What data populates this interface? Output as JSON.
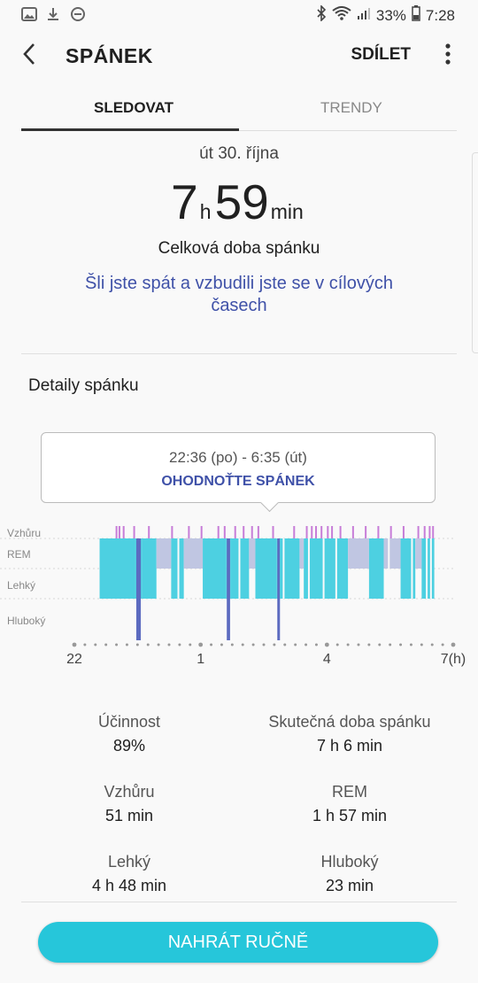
{
  "status_bar": {
    "battery": "33%",
    "time": "7:28"
  },
  "header": {
    "title": "SPÁNEK",
    "share": "SDÍLET"
  },
  "tabs": [
    {
      "label": "SLEDOVAT"
    },
    {
      "label": "TRENDY"
    }
  ],
  "summary": {
    "date": "út 30. října",
    "hours": "7",
    "hours_unit": "h",
    "minutes": "59",
    "minutes_unit": "min",
    "label": "Celková doba spánku",
    "message": "Šli jste spát a vzbudili jste se v cílových časech"
  },
  "details": {
    "title": "Detaily spánku",
    "time_range": "22:36 (po) - 6:35 (út)",
    "rate_label": "OHODNOŤTE SPÁNEK"
  },
  "chart_data": {
    "type": "area",
    "stage_labels": [
      "Vzhůru",
      "REM",
      "Lehký",
      "Hluboký"
    ],
    "x_ticks": [
      "22",
      "1",
      "4",
      "7(h)"
    ],
    "x_range_hours": [
      22,
      31
    ],
    "colors": {
      "awake": "#c77dd8",
      "rem": "#c0c6e2",
      "light": "#4dd0e1",
      "deep": "#5c6bc0"
    },
    "segments": [
      {
        "stage": "light",
        "from": 22.6,
        "to": 23.45
      },
      {
        "stage": "deep",
        "from": 23.45,
        "to": 23.6
      },
      {
        "stage": "light",
        "from": 23.6,
        "to": 23.95
      },
      {
        "stage": "rem",
        "from": 23.95,
        "to": 24.3
      },
      {
        "stage": "light",
        "from": 24.3,
        "to": 24.6
      },
      {
        "stage": "rem",
        "from": 24.6,
        "to": 25.05
      },
      {
        "stage": "light",
        "from": 25.05,
        "to": 25.6
      },
      {
        "stage": "deep",
        "from": 25.6,
        "to": 25.72
      },
      {
        "stage": "light",
        "from": 25.72,
        "to": 26.15
      },
      {
        "stage": "rem",
        "from": 26.15,
        "to": 26.3
      },
      {
        "stage": "light",
        "from": 26.3,
        "to": 26.8
      },
      {
        "stage": "deep",
        "from": 26.8,
        "to": 26.88
      },
      {
        "stage": "light",
        "from": 26.88,
        "to": 27.35
      },
      {
        "stage": "rem",
        "from": 27.35,
        "to": 27.45
      },
      {
        "stage": "light",
        "from": 27.45,
        "to": 28.5
      },
      {
        "stage": "rem",
        "from": 28.5,
        "to": 29.0
      },
      {
        "stage": "light",
        "from": 29.0,
        "to": 29.35
      },
      {
        "stage": "rem",
        "from": 29.35,
        "to": 29.75
      },
      {
        "stage": "light",
        "from": 29.75,
        "to": 30.1
      },
      {
        "stage": "rem",
        "from": 30.1,
        "to": 30.25
      },
      {
        "stage": "light",
        "from": 30.25,
        "to": 30.55
      }
    ],
    "awake_marks": [
      22.98,
      23.05,
      23.15,
      23.4,
      23.75,
      24.3,
      24.7,
      25.0,
      25.4,
      25.55,
      25.8,
      26.0,
      26.2,
      26.35,
      26.7,
      27.2,
      27.5,
      27.62,
      27.72,
      27.85,
      28.0,
      28.1,
      28.3,
      28.6,
      28.9,
      29.2,
      29.5,
      29.8,
      30.15,
      30.3,
      30.42,
      30.5
    ],
    "light_gaps": [
      24.45,
      25.9,
      26.95,
      27.55,
      27.9,
      28.2,
      29.45,
      30.0,
      30.35,
      30.45
    ]
  },
  "stats": [
    {
      "label": "Účinnost",
      "value": "89%"
    },
    {
      "label": "Skutečná doba spánku",
      "value": "7 h 6 min"
    },
    {
      "label": "Vzhůru",
      "value": "51 min"
    },
    {
      "label": "REM",
      "value": "1 h 57 min"
    },
    {
      "label": "Lehký",
      "value": "4 h 48 min"
    },
    {
      "label": "Hluboký",
      "value": "23 min"
    }
  ],
  "action": {
    "label": "NAHRÁT RUČNĚ"
  }
}
